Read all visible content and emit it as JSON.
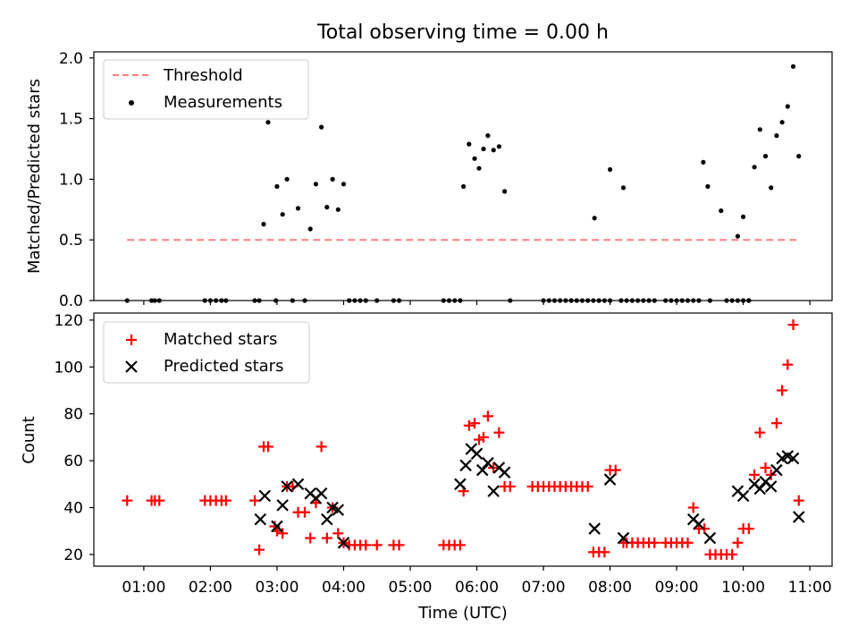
{
  "title": "Total observing time = 0.00 h",
  "colors": {
    "threshold": "#ff7f7f",
    "measurement": "#000000",
    "matched": "#ff0000",
    "predicted": "#000000"
  },
  "chart_data": [
    {
      "type": "scatter",
      "title": "Total observing time = 0.00 h",
      "xlabel": "",
      "ylabel": "Matched/Predicted stars",
      "xlim": [
        "00:15",
        "11:20"
      ],
      "ylim": [
        0,
        2.05
      ],
      "yticks": [
        0.0,
        0.5,
        1.0,
        1.5,
        2.0
      ],
      "ytick_labels": [
        "0.0",
        "0.5",
        "1.0",
        "1.5",
        "2.0"
      ],
      "legend_position": "upper-left",
      "legend": [
        "Threshold",
        "Measurements"
      ],
      "threshold": {
        "name": "Threshold",
        "y": 0.5,
        "x_start": "00:45",
        "x_end": "10:52"
      },
      "series": [
        {
          "name": "Measurements",
          "points": [
            [
              "00:45",
              0
            ],
            [
              "01:07",
              0
            ],
            [
              "01:10",
              0
            ],
            [
              "01:14",
              0
            ],
            [
              "01:55",
              0
            ],
            [
              "02:00",
              0
            ],
            [
              "02:05",
              0
            ],
            [
              "02:10",
              0
            ],
            [
              "02:14",
              0
            ],
            [
              "02:40",
              0
            ],
            [
              "02:44",
              0
            ],
            [
              "02:48",
              0.63
            ],
            [
              "02:52",
              1.47
            ],
            [
              "02:59",
              0
            ],
            [
              "03:00",
              0.94
            ],
            [
              "03:05",
              0.71
            ],
            [
              "03:09",
              1.0
            ],
            [
              "03:14",
              0
            ],
            [
              "03:19",
              0.76
            ],
            [
              "03:25",
              0
            ],
            [
              "03:30",
              0.59
            ],
            [
              "03:35",
              0.96
            ],
            [
              "03:40",
              1.43
            ],
            [
              "03:45",
              0.77
            ],
            [
              "03:50",
              1.0
            ],
            [
              "03:55",
              0.75
            ],
            [
              "04:00",
              0.96
            ],
            [
              "04:05",
              0
            ],
            [
              "04:10",
              0
            ],
            [
              "04:15",
              0
            ],
            [
              "04:20",
              0
            ],
            [
              "04:30",
              0
            ],
            [
              "04:45",
              0
            ],
            [
              "04:50",
              0
            ],
            [
              "05:30",
              0
            ],
            [
              "05:35",
              0
            ],
            [
              "05:40",
              0
            ],
            [
              "05:45",
              0
            ],
            [
              "05:48",
              0.94
            ],
            [
              "05:53",
              1.29
            ],
            [
              "05:58",
              1.17
            ],
            [
              "06:02",
              1.09
            ],
            [
              "06:06",
              1.25
            ],
            [
              "06:10",
              1.36
            ],
            [
              "06:15",
              1.24
            ],
            [
              "06:20",
              1.27
            ],
            [
              "06:25",
              0.9
            ],
            [
              "06:30",
              0
            ],
            [
              "07:00",
              0
            ],
            [
              "07:05",
              0
            ],
            [
              "07:10",
              0
            ],
            [
              "07:15",
              0
            ],
            [
              "07:20",
              0
            ],
            [
              "07:25",
              0
            ],
            [
              "07:30",
              0
            ],
            [
              "07:35",
              0
            ],
            [
              "07:40",
              0
            ],
            [
              "07:45",
              0
            ],
            [
              "07:50",
              0
            ],
            [
              "07:55",
              0
            ],
            [
              "07:46",
              0.68
            ],
            [
              "08:00",
              0
            ],
            [
              "08:00",
              1.08
            ],
            [
              "08:10",
              0
            ],
            [
              "08:12",
              0.93
            ],
            [
              "08:15",
              0
            ],
            [
              "08:20",
              0
            ],
            [
              "08:25",
              0
            ],
            [
              "08:30",
              0
            ],
            [
              "08:35",
              0
            ],
            [
              "08:40",
              0
            ],
            [
              "08:50",
              0
            ],
            [
              "08:55",
              0
            ],
            [
              "09:00",
              0
            ],
            [
              "09:05",
              0
            ],
            [
              "09:10",
              0
            ],
            [
              "09:15",
              0
            ],
            [
              "09:20",
              0
            ],
            [
              "09:24",
              1.14
            ],
            [
              "09:28",
              0.94
            ],
            [
              "09:30",
              0
            ],
            [
              "09:40",
              0.74
            ],
            [
              "09:45",
              0
            ],
            [
              "09:50",
              0
            ],
            [
              "09:55",
              0
            ],
            [
              "10:00",
              0
            ],
            [
              "10:05",
              0
            ],
            [
              "09:55",
              0.53
            ],
            [
              "10:00",
              0.69
            ],
            [
              "10:05",
              0
            ],
            [
              "10:10",
              1.1
            ],
            [
              "10:15",
              1.41
            ],
            [
              "10:20",
              1.19
            ],
            [
              "10:25",
              0.93
            ],
            [
              "10:30",
              1.36
            ],
            [
              "10:35",
              1.47
            ],
            [
              "10:40",
              1.6
            ],
            [
              "10:45",
              1.93
            ],
            [
              "10:50",
              1.19
            ]
          ]
        }
      ]
    },
    {
      "type": "scatter",
      "xlabel": "Time (UTC)",
      "ylabel": "Count",
      "xlim": [
        "00:15",
        "11:20"
      ],
      "ylim": [
        15,
        123
      ],
      "yticks": [
        20,
        40,
        60,
        80,
        100,
        120
      ],
      "ytick_labels": [
        "20",
        "40",
        "60",
        "80",
        "100",
        "120"
      ],
      "xticks": [
        "01:00",
        "02:00",
        "03:00",
        "04:00",
        "05:00",
        "06:00",
        "07:00",
        "08:00",
        "09:00",
        "10:00",
        "11:00"
      ],
      "legend_position": "upper-left",
      "legend": [
        "Matched stars",
        "Predicted stars"
      ],
      "series": [
        {
          "name": "Matched stars",
          "marker": "plus",
          "points": [
            [
              "00:45",
              43
            ],
            [
              "01:07",
              43
            ],
            [
              "01:10",
              43
            ],
            [
              "01:14",
              43
            ],
            [
              "01:55",
              43
            ],
            [
              "02:00",
              43
            ],
            [
              "02:05",
              43
            ],
            [
              "02:10",
              43
            ],
            [
              "02:14",
              43
            ],
            [
              "02:40",
              43
            ],
            [
              "02:44",
              22
            ],
            [
              "02:48",
              66
            ],
            [
              "02:52",
              66
            ],
            [
              "02:58",
              32
            ],
            [
              "03:00",
              30
            ],
            [
              "03:05",
              29
            ],
            [
              "03:09",
              49
            ],
            [
              "03:14",
              49
            ],
            [
              "03:19",
              38
            ],
            [
              "03:25",
              38
            ],
            [
              "03:30",
              27
            ],
            [
              "03:35",
              42
            ],
            [
              "03:40",
              66
            ],
            [
              "03:45",
              27
            ],
            [
              "03:50",
              40
            ],
            [
              "03:55",
              29
            ],
            [
              "04:00",
              25
            ],
            [
              "04:05",
              24
            ],
            [
              "04:10",
              24
            ],
            [
              "04:15",
              24
            ],
            [
              "04:20",
              24
            ],
            [
              "04:30",
              24
            ],
            [
              "04:45",
              24
            ],
            [
              "04:50",
              24
            ],
            [
              "05:30",
              24
            ],
            [
              "05:35",
              24
            ],
            [
              "05:40",
              24
            ],
            [
              "05:45",
              24
            ],
            [
              "05:48",
              47
            ],
            [
              "05:53",
              75
            ],
            [
              "05:58",
              76
            ],
            [
              "06:02",
              69
            ],
            [
              "06:06",
              70
            ],
            [
              "06:10",
              79
            ],
            [
              "06:15",
              57
            ],
            [
              "06:20",
              72
            ],
            [
              "06:25",
              49
            ],
            [
              "06:30",
              49
            ],
            [
              "06:50",
              49
            ],
            [
              "06:55",
              49
            ],
            [
              "07:00",
              49
            ],
            [
              "07:05",
              49
            ],
            [
              "07:10",
              49
            ],
            [
              "07:15",
              49
            ],
            [
              "07:20",
              49
            ],
            [
              "07:25",
              49
            ],
            [
              "07:30",
              49
            ],
            [
              "07:35",
              49
            ],
            [
              "07:40",
              49
            ],
            [
              "07:45",
              21
            ],
            [
              "07:50",
              21
            ],
            [
              "07:55",
              21
            ],
            [
              "08:00",
              56
            ],
            [
              "08:05",
              56
            ],
            [
              "08:12",
              25
            ],
            [
              "08:15",
              25
            ],
            [
              "08:20",
              25
            ],
            [
              "08:25",
              25
            ],
            [
              "08:30",
              25
            ],
            [
              "08:35",
              25
            ],
            [
              "08:40",
              25
            ],
            [
              "08:50",
              25
            ],
            [
              "08:55",
              25
            ],
            [
              "09:00",
              25
            ],
            [
              "09:05",
              25
            ],
            [
              "09:10",
              25
            ],
            [
              "09:15",
              40
            ],
            [
              "09:20",
              31
            ],
            [
              "09:25",
              31
            ],
            [
              "09:30",
              20
            ],
            [
              "09:35",
              20
            ],
            [
              "09:40",
              20
            ],
            [
              "09:45",
              20
            ],
            [
              "09:50",
              20
            ],
            [
              "09:55",
              25
            ],
            [
              "10:00",
              31
            ],
            [
              "10:05",
              31
            ],
            [
              "10:10",
              54
            ],
            [
              "10:15",
              72
            ],
            [
              "10:20",
              57
            ],
            [
              "10:25",
              54
            ],
            [
              "10:30",
              76
            ],
            [
              "10:35",
              90
            ],
            [
              "10:40",
              101
            ],
            [
              "10:45",
              118
            ],
            [
              "10:50",
              43
            ]
          ]
        },
        {
          "name": "Predicted stars",
          "marker": "x",
          "points": [
            [
              "02:45",
              35
            ],
            [
              "02:49",
              45
            ],
            [
              "03:00",
              32
            ],
            [
              "03:05",
              41
            ],
            [
              "03:09",
              49
            ],
            [
              "03:19",
              50
            ],
            [
              "03:30",
              46
            ],
            [
              "03:35",
              44
            ],
            [
              "03:40",
              46
            ],
            [
              "03:45",
              35
            ],
            [
              "03:50",
              40
            ],
            [
              "03:55",
              39
            ],
            [
              "04:00",
              25
            ],
            [
              "05:45",
              50
            ],
            [
              "05:50",
              58
            ],
            [
              "05:55",
              65
            ],
            [
              "06:00",
              63
            ],
            [
              "06:05",
              56
            ],
            [
              "06:10",
              59
            ],
            [
              "06:15",
              47
            ],
            [
              "06:20",
              57
            ],
            [
              "06:25",
              55
            ],
            [
              "07:46",
              31
            ],
            [
              "08:00",
              52
            ],
            [
              "08:12",
              27
            ],
            [
              "09:15",
              35
            ],
            [
              "09:20",
              33
            ],
            [
              "09:30",
              27
            ],
            [
              "09:55",
              47
            ],
            [
              "10:00",
              45
            ],
            [
              "10:10",
              50
            ],
            [
              "10:15",
              48
            ],
            [
              "10:20",
              51
            ],
            [
              "10:25",
              49
            ],
            [
              "10:30",
              56
            ],
            [
              "10:35",
              61
            ],
            [
              "10:40",
              62
            ],
            [
              "10:45",
              61
            ],
            [
              "10:50",
              36
            ]
          ]
        }
      ]
    }
  ]
}
